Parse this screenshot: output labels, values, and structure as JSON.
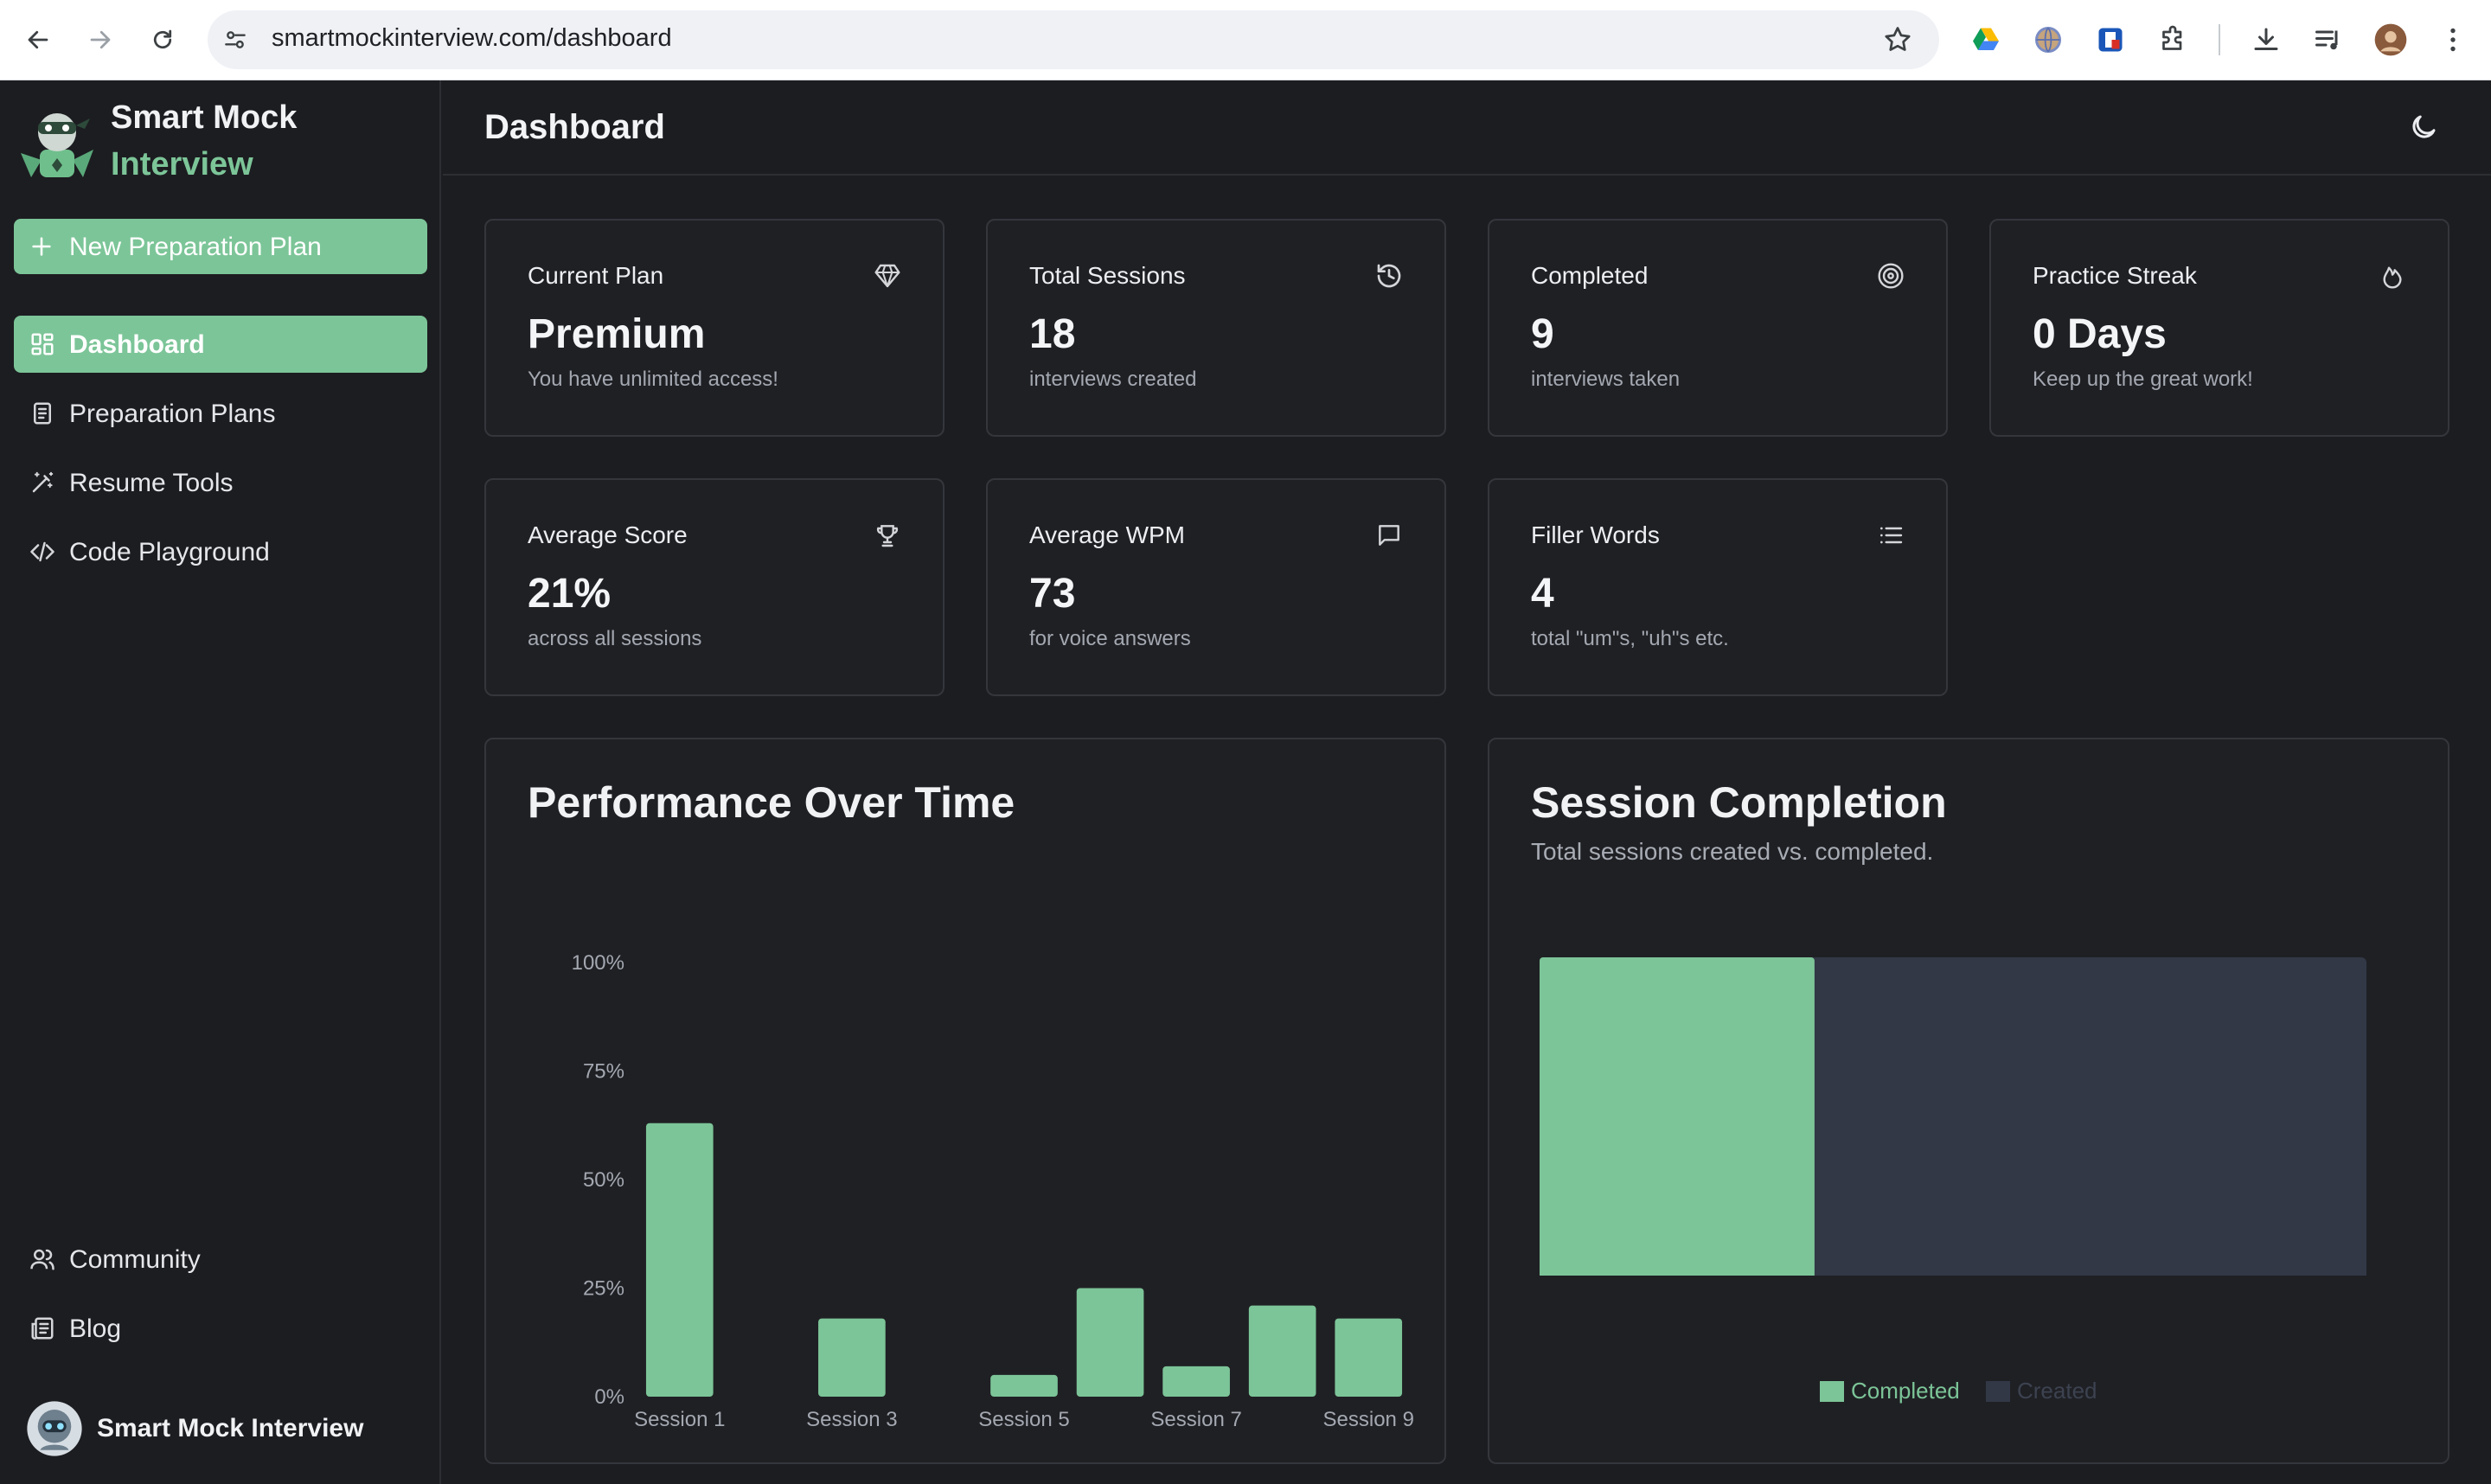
{
  "browser": {
    "url": "smartmockinterview.com/dashboard"
  },
  "sidebar": {
    "brand_line1": "Smart Mock",
    "brand_line2": "Interview",
    "new_plan_label": "New Preparation Plan",
    "items": [
      {
        "label": "Dashboard",
        "icon": "grid-icon",
        "active": true
      },
      {
        "label": "Preparation Plans",
        "icon": "notebook-icon",
        "active": false
      },
      {
        "label": "Resume Tools",
        "icon": "magic-wand-icon",
        "active": false
      },
      {
        "label": "Code Playground",
        "icon": "code-icon",
        "active": false
      }
    ],
    "bottom_items": [
      {
        "label": "Community",
        "icon": "users-icon"
      },
      {
        "label": "Blog",
        "icon": "newspaper-icon"
      }
    ],
    "user_name": "Smart Mock Interview"
  },
  "header": {
    "title": "Dashboard",
    "theme_icon": "moon-icon"
  },
  "stats": [
    {
      "title": "Current Plan",
      "value": "Premium",
      "sub": "You have unlimited access!",
      "icon": "gem-icon"
    },
    {
      "title": "Total Sessions",
      "value": "18",
      "sub": "interviews created",
      "icon": "history-icon"
    },
    {
      "title": "Completed",
      "value": "9",
      "sub": "interviews taken",
      "icon": "target-icon"
    },
    {
      "title": "Practice Streak",
      "value": "0 Days",
      "sub": "Keep up the great work!",
      "icon": "flame-icon"
    },
    {
      "title": "Average Score",
      "value": "21%",
      "sub": "across all sessions",
      "icon": "trophy-icon"
    },
    {
      "title": "Average WPM",
      "value": "73",
      "sub": "for voice answers",
      "icon": "message-square-icon"
    },
    {
      "title": "Filler Words",
      "value": "4",
      "sub": "total \"um\"s, \"uh\"s etc.",
      "icon": "list-icon"
    }
  ],
  "performance": {
    "title": "Performance Over Time"
  },
  "completion": {
    "title": "Session Completion",
    "subtitle": "Total sessions created vs. completed.",
    "legend_completed": "Completed",
    "legend_created": "Created"
  },
  "colors": {
    "accent": "#7cc598",
    "created_bar": "#323846",
    "background": "#1c1d21"
  },
  "chart_data": [
    {
      "type": "bar",
      "title": "Performance Over Time",
      "categories": [
        "Session 1",
        "Session 2",
        "Session 3",
        "Session 4",
        "Session 5",
        "Session 6",
        "Session 7",
        "Session 8",
        "Session 9"
      ],
      "tick_labels_x": [
        "Session 1",
        "Session 3",
        "Session 5",
        "Session 7",
        "Session 9"
      ],
      "values": [
        63,
        0,
        18,
        0,
        5,
        25,
        7,
        21,
        18
      ],
      "ylim": [
        0,
        100
      ],
      "yticks": [
        "0%",
        "25%",
        "50%",
        "75%",
        "100%"
      ],
      "ytick_values": [
        0,
        25,
        50,
        75,
        100
      ],
      "grid": false,
      "xlabel": "",
      "ylabel": ""
    },
    {
      "type": "bar",
      "orientation": "stacked-horizontal",
      "title": "Session Completion",
      "subtitle": "Total sessions created vs. completed.",
      "series": [
        {
          "name": "Completed",
          "values": [
            9
          ]
        },
        {
          "name": "Created",
          "values": [
            18
          ]
        }
      ],
      "legend": "bottom-center"
    }
  ]
}
